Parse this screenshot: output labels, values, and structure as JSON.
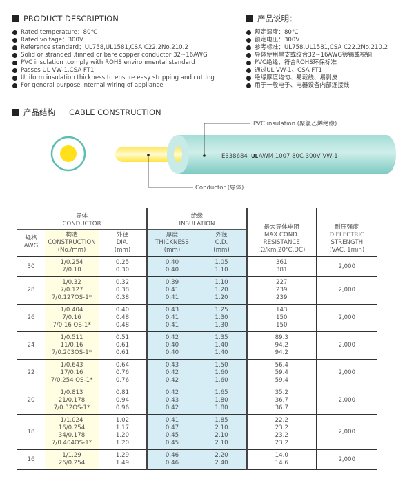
{
  "product_description_en": {
    "title": "PRODUCT DESCRIPTION",
    "items": [
      "Rated temperature：80℃",
      "Rated voltage：300V",
      "Reference standard：UL758,UL1581,CSA C22.2No.210.2",
      "Solid or stranded ,tinned or bare copper conductor 32~16AWG",
      "PVC insulation ,comply with ROHS environmental standard",
      "Passes UL VW-1,CSA FT1",
      "Uniform insulation thickness to ensure easy stripping and cutting",
      "For general purpose internal wiring of appliance"
    ]
  },
  "product_description_cn": {
    "title": "产品说明：",
    "items": [
      "额定温度：80℃",
      "额定电压：300V",
      "参考标准：UL758,UL1581,CSA C22.2No.210.2",
      "导体使用单支或绞合32~16AWG镀锡或裸铜",
      "PVC绝缘，符合ROHS环保标准",
      "通过UL VW-1、CSA FT1",
      "绝缘厚度均匀、易裁线、易剥皮",
      "用于一般电子、电器设备内部连接线"
    ]
  },
  "cable_construction": {
    "title_cn": "产品结构",
    "title_en": "CABLE CONSTRUCTION",
    "insulation_label": "PVC insulation (聚氯乙烯绝缘)",
    "conductor_label": "Conductor (导体)",
    "print_left": "E338684",
    "print_mark": "UL",
    "print_right": "AWM 1007 80C 300V VW-1",
    "colors": {
      "insulation": "#8fd3cc",
      "conductor": "#ffe31a"
    }
  },
  "table": {
    "group_conductor": [
      "导体",
      "CONDUCTOR"
    ],
    "group_insulation": [
      "绝缘",
      "INSULATION"
    ],
    "headers": {
      "awg": [
        "规格",
        "AWG"
      ],
      "construction": [
        "构造",
        "CONSTRUCTION",
        "(No./mm)"
      ],
      "dia": [
        "外径",
        "DIA.",
        "(mm)"
      ],
      "thickness": [
        "厚度",
        "THICKNESS",
        "(mm)"
      ],
      "od": [
        "外径",
        "O.D.",
        "(mm)"
      ],
      "resistance": [
        "最大导体电阻",
        "MAX.COND.",
        "RESISTANCE",
        "(Ω/km,20℃,DC)"
      ],
      "dielectric": [
        "耐压强度",
        "DIELECTRIC",
        "STRENGTH",
        "(VAC, 1min)"
      ]
    },
    "rows": [
      {
        "awg": "30",
        "construction": [
          "1/0.254",
          "7/0.10"
        ],
        "dia": [
          "0.25",
          "0.30"
        ],
        "thickness": [
          "0.40",
          "0.40"
        ],
        "od": [
          "1.05",
          "1.10"
        ],
        "resistance": [
          "361",
          "381"
        ],
        "dielectric": "2,000"
      },
      {
        "awg": "28",
        "construction": [
          "1/0.32",
          "7/0.127",
          "7/0.127OS-1*"
        ],
        "dia": [
          "0.32",
          "0.38",
          "0.38"
        ],
        "thickness": [
          "0.39",
          "0.41",
          "0.41"
        ],
        "od": [
          "1.10",
          "1.20",
          "1.20"
        ],
        "resistance": [
          "227",
          "239",
          "239"
        ],
        "dielectric": "2,000"
      },
      {
        "awg": "26",
        "construction": [
          "1/0.404",
          "7/0.16",
          "7/0.16 OS-1*"
        ],
        "dia": [
          "0.40",
          "0.48",
          "0.48"
        ],
        "thickness": [
          "0.43",
          "0.41",
          "0.41"
        ],
        "od": [
          "1.25",
          "1.30",
          "1.30"
        ],
        "resistance": [
          "143",
          "150",
          "150"
        ],
        "dielectric": "2,000"
      },
      {
        "awg": "24",
        "construction": [
          "1/0.511",
          "11/0.16",
          "7/0.203OS-1*"
        ],
        "dia": [
          "0.51",
          "0.61",
          "0.61"
        ],
        "thickness": [
          "0.42",
          "0.40",
          "0.40"
        ],
        "od": [
          "1.35",
          "1.40",
          "1.40"
        ],
        "resistance": [
          "89.3",
          "94.2",
          "94.2"
        ],
        "dielectric": "2,000"
      },
      {
        "awg": "22",
        "construction": [
          "1/0.643",
          "17/0.16",
          "7/0.254 OS-1*"
        ],
        "dia": [
          "0.64",
          "0.76",
          "0.76"
        ],
        "thickness": [
          "0.43",
          "0.42",
          "0.42"
        ],
        "od": [
          "1.50",
          "1.60",
          "1.60"
        ],
        "resistance": [
          "56.4",
          "59.4",
          "59.4"
        ],
        "dielectric": "2,000"
      },
      {
        "awg": "20",
        "construction": [
          "1/0.813",
          "21/0.178",
          "7/0.32OS-1*"
        ],
        "dia": [
          "0.81",
          "0.94",
          "0.96"
        ],
        "thickness": [
          "0.42",
          "0.43",
          "0.42"
        ],
        "od": [
          "1.65",
          "1.80",
          "1.80"
        ],
        "resistance": [
          "35.2",
          "36.7",
          "36.7"
        ],
        "dielectric": "2,000"
      },
      {
        "awg": "18",
        "construction": [
          "1/1.024",
          "16/0.254",
          "34/0.178",
          "7/0.404OS-1*"
        ],
        "dia": [
          "1.02",
          "1.17",
          "1.20",
          "1.20"
        ],
        "thickness": [
          "0.41",
          "0.47",
          "0.45",
          "0.45"
        ],
        "od": [
          "1.85",
          "2.10",
          "2.10",
          "2.10"
        ],
        "resistance": [
          "22.2",
          "23.2",
          "23.2",
          "23.2"
        ],
        "dielectric": "2,000"
      },
      {
        "awg": "16",
        "construction": [
          "1/1.29",
          "26/0.254"
        ],
        "dia": [
          "1.29",
          "1.49"
        ],
        "thickness": [
          "0.46",
          "0.46"
        ],
        "od": [
          "2.20",
          "2.40"
        ],
        "resistance": [
          "14.0",
          "14.6"
        ],
        "dielectric": "2,000"
      }
    ]
  }
}
